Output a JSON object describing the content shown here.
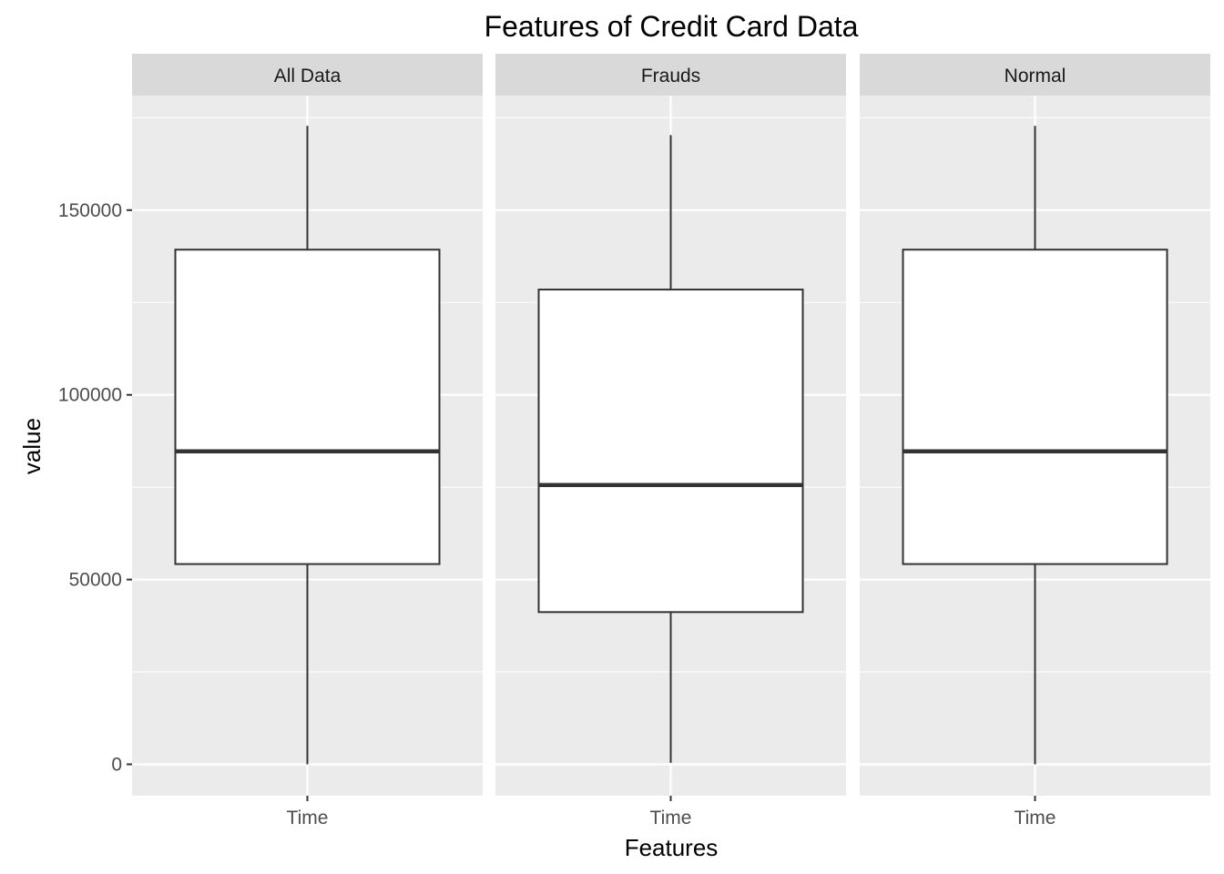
{
  "chart_data": {
    "type": "boxplot",
    "title": "Features of Credit Card Data",
    "xlabel": "Features",
    "ylabel": "value",
    "ylim": [
      -8500,
      181000
    ],
    "y_ticks": [
      0,
      50000,
      100000,
      150000
    ],
    "y_tick_labels": [
      "0",
      "50000",
      "100000",
      "150000"
    ],
    "y_minor_ticks": [
      25000,
      75000,
      125000,
      175000
    ],
    "grid": true,
    "categories": [
      "Time"
    ],
    "facets": [
      {
        "label": "All Data",
        "boxes": [
          {
            "category": "Time",
            "min": 0,
            "q1": 54200,
            "median": 84700,
            "q3": 139300,
            "max": 172800
          }
        ]
      },
      {
        "label": "Frauds",
        "boxes": [
          {
            "category": "Time",
            "min": 400,
            "q1": 41200,
            "median": 75600,
            "q3": 128500,
            "max": 170300
          }
        ]
      },
      {
        "label": "Normal",
        "boxes": [
          {
            "category": "Time",
            "min": 0,
            "q1": 54200,
            "median": 84700,
            "q3": 139300,
            "max": 172800
          }
        ]
      }
    ]
  },
  "colors": {
    "panel_background": "#ebebeb",
    "strip_background": "#d9d9d9",
    "grid_line": "#ffffff",
    "box_fill": "#ffffff",
    "box_stroke": "#333333",
    "tick_text": "#4d4d4d",
    "tick_mark": "#333333"
  }
}
